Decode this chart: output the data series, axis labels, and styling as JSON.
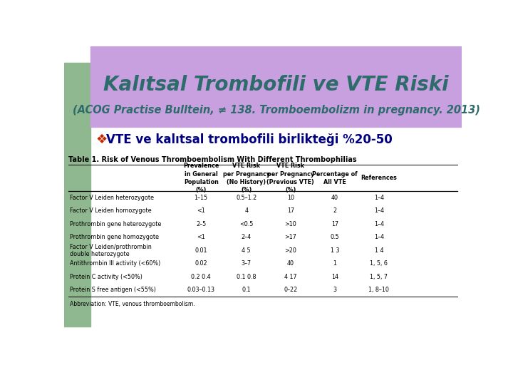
{
  "title": "Kalıtsal Trombofili ve VTE Riski",
  "subtitle": "(ACOG Practise Bulltein, ≠ 138. Tromboembolizm in pregnancy. 2013)",
  "bullet_symbol": "❖",
  "bullet_text": "VTE ve kalıtsal trombofili birlikteği %20-50",
  "table_title": "Table 1. Risk of Venous Thromboembolism With Different Thrombophilias",
  "col_headers": [
    "Prevalence\nin General\nPopulation\n(%)",
    "VTE Risk\nper Pregnancy\n(No History)\n(%)",
    "VTE Risk\nper Pregnancy\n(Previous VTE)\n(%)",
    "Percentage of\nAll VTE",
    "References"
  ],
  "row_labels": [
    "Factor V Leiden heterozygote",
    "Factor V Leiden homozygote",
    "Prothrombin gene heterozygote",
    "Prothrombin gene homozygote",
    "Factor V Leiden/prothrombin\ndouble heterozygote",
    "Antithrombin III activity (<60%)",
    "Protein C activity (<50%)",
    "Protein S free antigen (<55%)"
  ],
  "table_data": [
    [
      "1–15",
      "0.5–1.2",
      "10",
      "40",
      "1–4"
    ],
    [
      "<1",
      "4",
      "17",
      "2",
      "1–4"
    ],
    [
      "2–5",
      "<0.5",
      ">10",
      "17",
      "1–4"
    ],
    [
      "<1",
      "2–4",
      ">17",
      "0.5",
      "1–4"
    ],
    [
      "0.01",
      "4 5",
      ">20",
      "1 3",
      "1 4"
    ],
    [
      "0.02",
      "3–7",
      "40",
      "1",
      "1, 5, 6"
    ],
    [
      "0.2 0.4",
      "0.1 0.8",
      "4 17",
      "14",
      "1, 5, 7"
    ],
    [
      "0.03–0.13",
      "0.1",
      "0–22",
      "3",
      "1, 8–10"
    ]
  ],
  "abbreviation": "Abbreviation: VTE, venous thromboembolism.",
  "bg_color": "#ffffff",
  "header_bg": "#c8a0e0",
  "left_bar_color": "#90b890",
  "title_color": "#2e6b6b",
  "subtitle_color": "#2e6b6b",
  "bullet_color": "#000080",
  "bullet_cross_color": "#cc2200"
}
